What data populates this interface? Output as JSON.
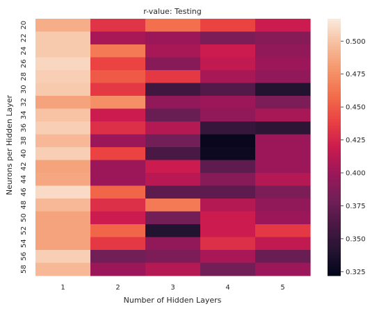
{
  "chart_data": {
    "type": "heatmap",
    "title": "r-value: Testing",
    "xlabel": "Number of Hidden Layers",
    "ylabel": "Neurons per Hidden Layer",
    "x_categories": [
      "1",
      "2",
      "3",
      "4",
      "5"
    ],
    "y_categories": [
      "20",
      "22",
      "24",
      "26",
      "28",
      "30",
      "32",
      "34",
      "36",
      "38",
      "40",
      "42",
      "44",
      "46",
      "48",
      "50",
      "52",
      "54",
      "56",
      "58"
    ],
    "values": [
      [
        0.49,
        0.433,
        0.46,
        0.44,
        0.42
      ],
      [
        0.503,
        0.405,
        0.4,
        0.385,
        0.39
      ],
      [
        0.503,
        0.465,
        0.405,
        0.42,
        0.395
      ],
      [
        0.508,
        0.44,
        0.39,
        0.415,
        0.4
      ],
      [
        0.505,
        0.45,
        0.435,
        0.405,
        0.395
      ],
      [
        0.503,
        0.435,
        0.355,
        0.365,
        0.34
      ],
      [
        0.485,
        0.475,
        0.395,
        0.4,
        0.385
      ],
      [
        0.5,
        0.42,
        0.375,
        0.395,
        0.405
      ],
      [
        0.505,
        0.43,
        0.41,
        0.35,
        0.345
      ],
      [
        0.495,
        0.4,
        0.38,
        0.325,
        0.4
      ],
      [
        0.505,
        0.44,
        0.36,
        0.327,
        0.4
      ],
      [
        0.485,
        0.4,
        0.42,
        0.37,
        0.4
      ],
      [
        0.487,
        0.4,
        0.412,
        0.39,
        0.41
      ],
      [
        0.51,
        0.455,
        0.37,
        0.37,
        0.385
      ],
      [
        0.495,
        0.43,
        0.465,
        0.41,
        0.395
      ],
      [
        0.485,
        0.42,
        0.38,
        0.42,
        0.4
      ],
      [
        0.485,
        0.455,
        0.34,
        0.42,
        0.435
      ],
      [
        0.485,
        0.435,
        0.395,
        0.43,
        0.415
      ],
      [
        0.505,
        0.38,
        0.385,
        0.405,
        0.375
      ],
      [
        0.495,
        0.4,
        0.41,
        0.38,
        0.4
      ]
    ],
    "vmin": 0.322,
    "vmax": 0.517,
    "colorbar_ticks": [
      "0.325",
      "0.350",
      "0.375",
      "0.400",
      "0.425",
      "0.450",
      "0.475",
      "0.500"
    ],
    "colormap": "rocket",
    "grid": false,
    "legend": "colorbar-right"
  }
}
